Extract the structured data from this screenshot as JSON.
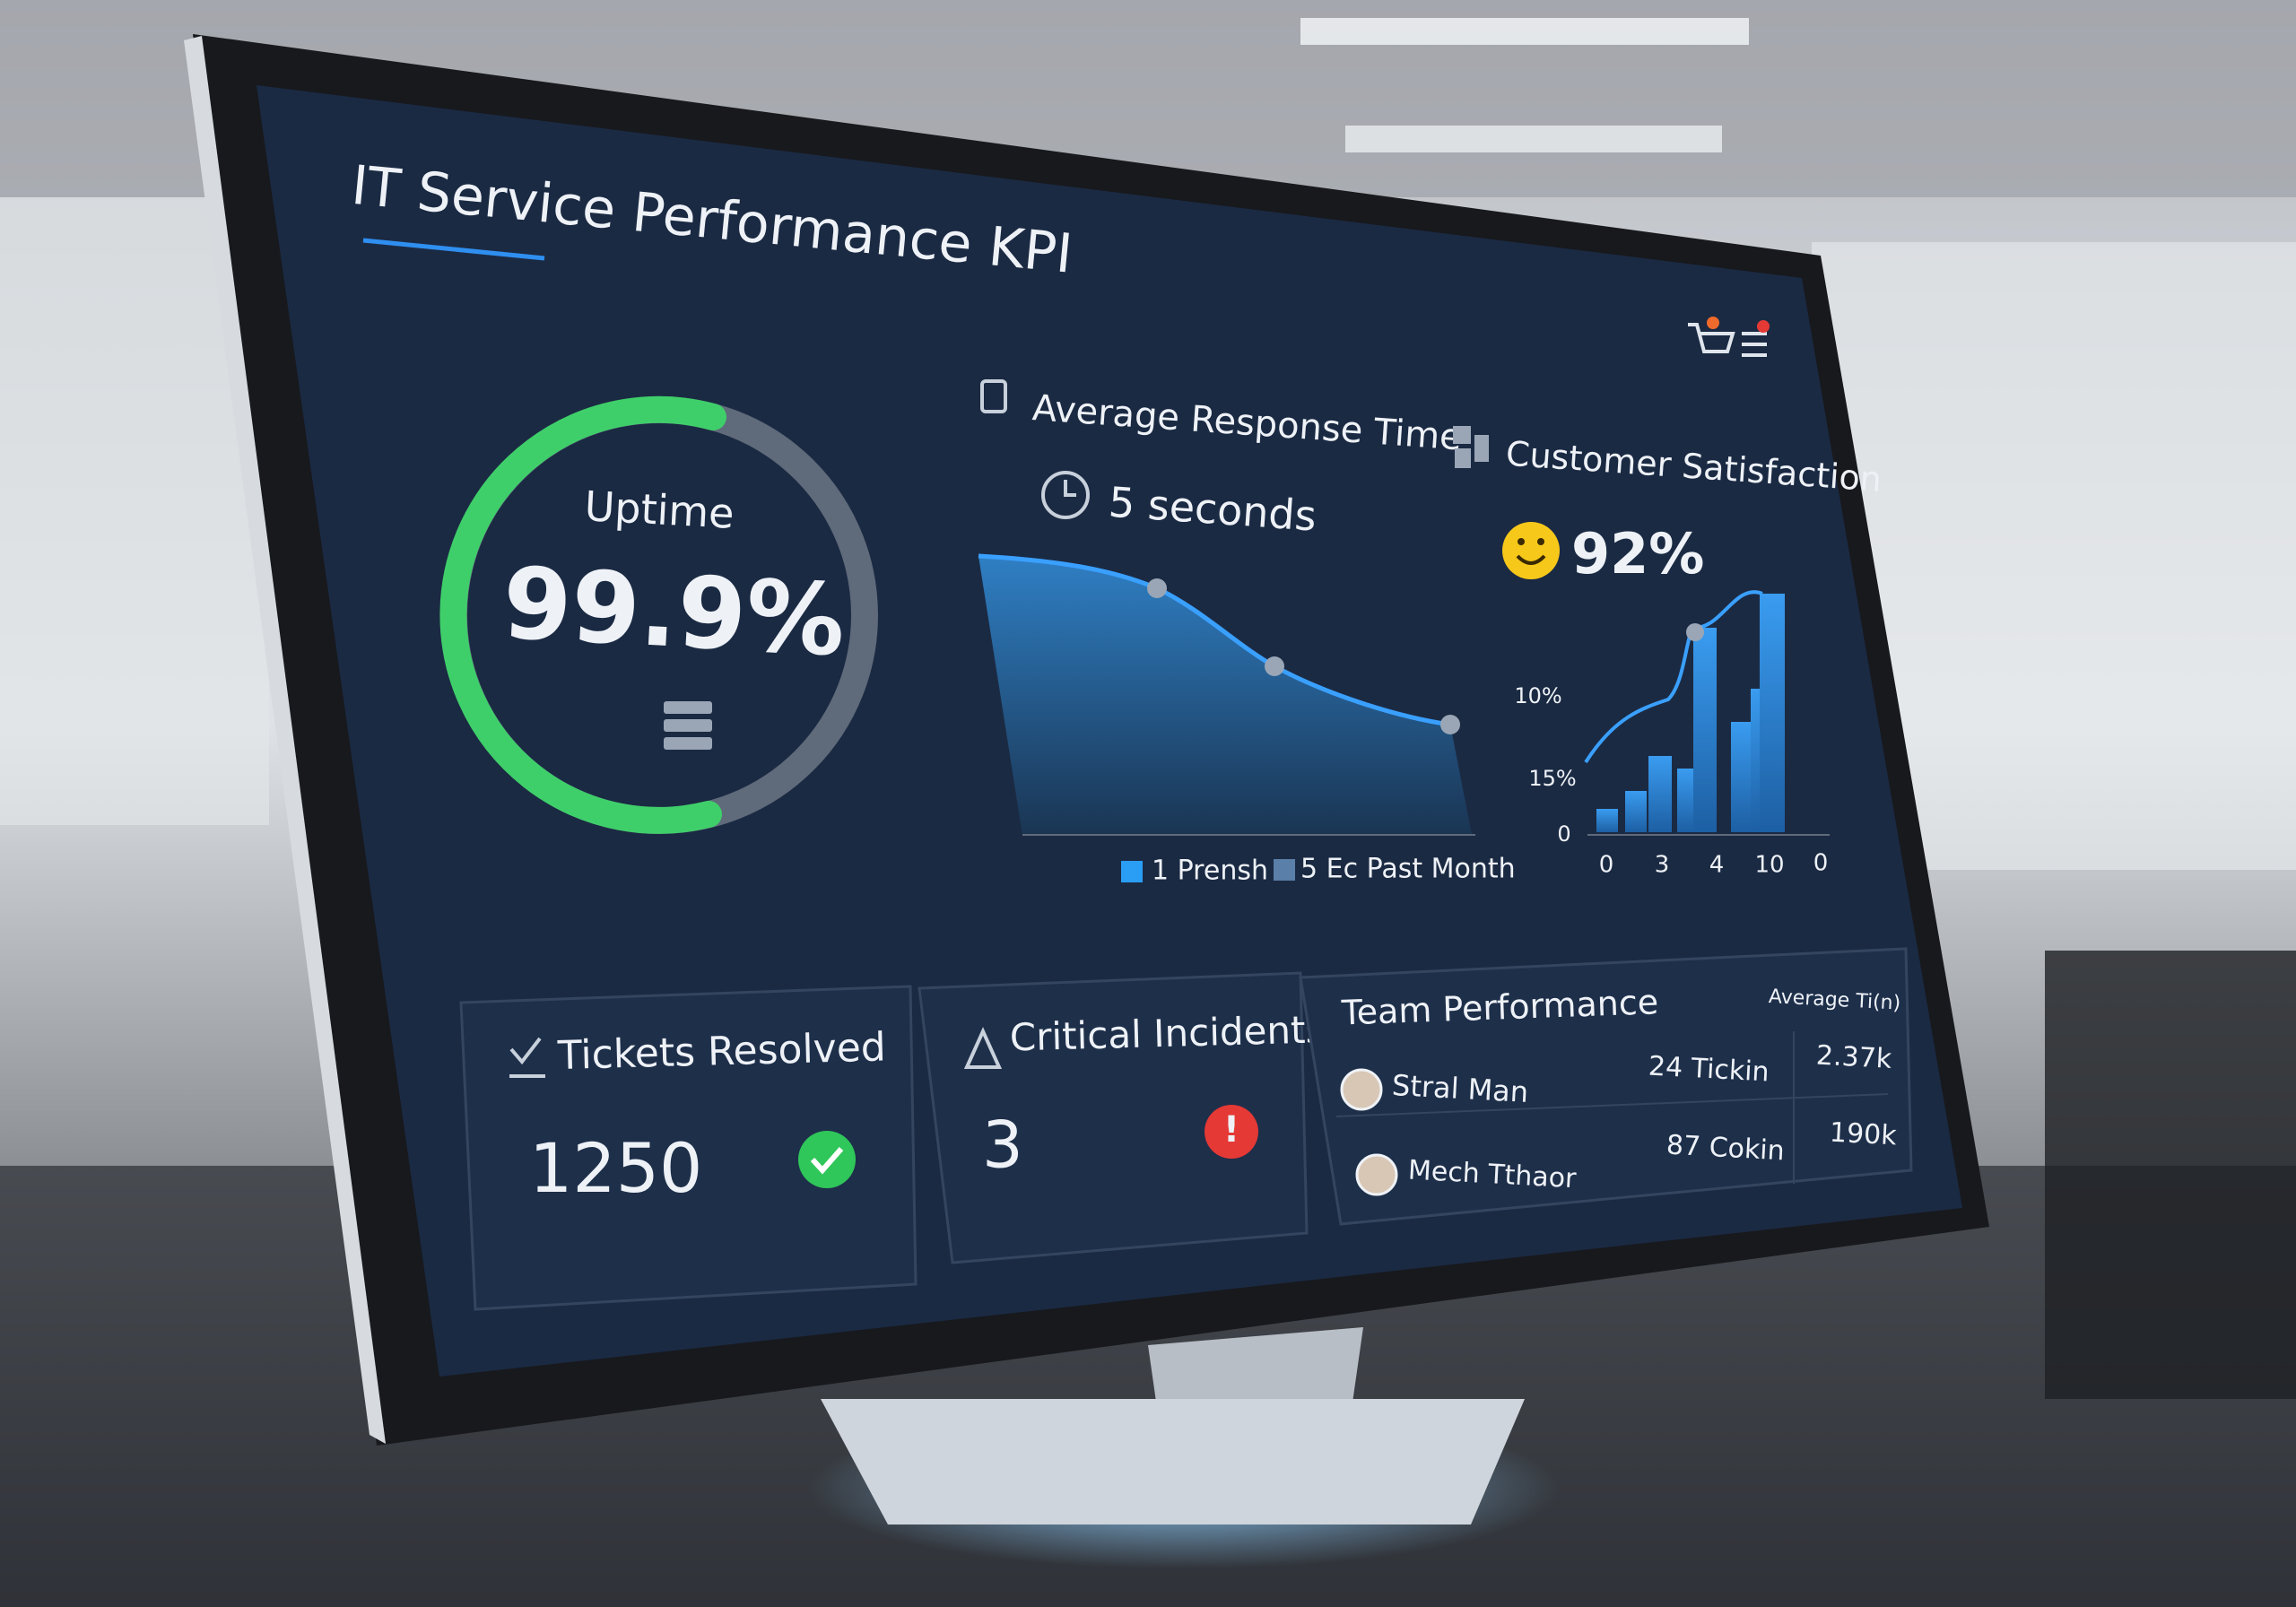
{
  "header": {
    "title": "IT Service Performance KPI"
  },
  "uptime": {
    "label": "Uptime",
    "value": "99.9%"
  },
  "response_time": {
    "title": "Average Response Time",
    "value": "5 seconds",
    "legend": [
      "1 Prensh",
      "5 Ec Past Month"
    ]
  },
  "satisfaction": {
    "title": "Customer Satisfaction",
    "value": "92%",
    "y_labels": [
      "10%",
      "15%",
      "0"
    ],
    "x_labels": [
      "0",
      "3",
      "4",
      "10",
      "0"
    ]
  },
  "tickets": {
    "title": "Tickets Resolved",
    "value": "1250"
  },
  "incidents": {
    "title": "Critical Incidents",
    "value": "3"
  },
  "team": {
    "title": "Team Performance",
    "column": "Average Ti(n)",
    "rows": [
      [
        "Stral Man",
        "24 Tickin",
        "2.37k"
      ],
      [
        "Mech Tthaor",
        "87 Cokin",
        "190k"
      ]
    ]
  }
}
